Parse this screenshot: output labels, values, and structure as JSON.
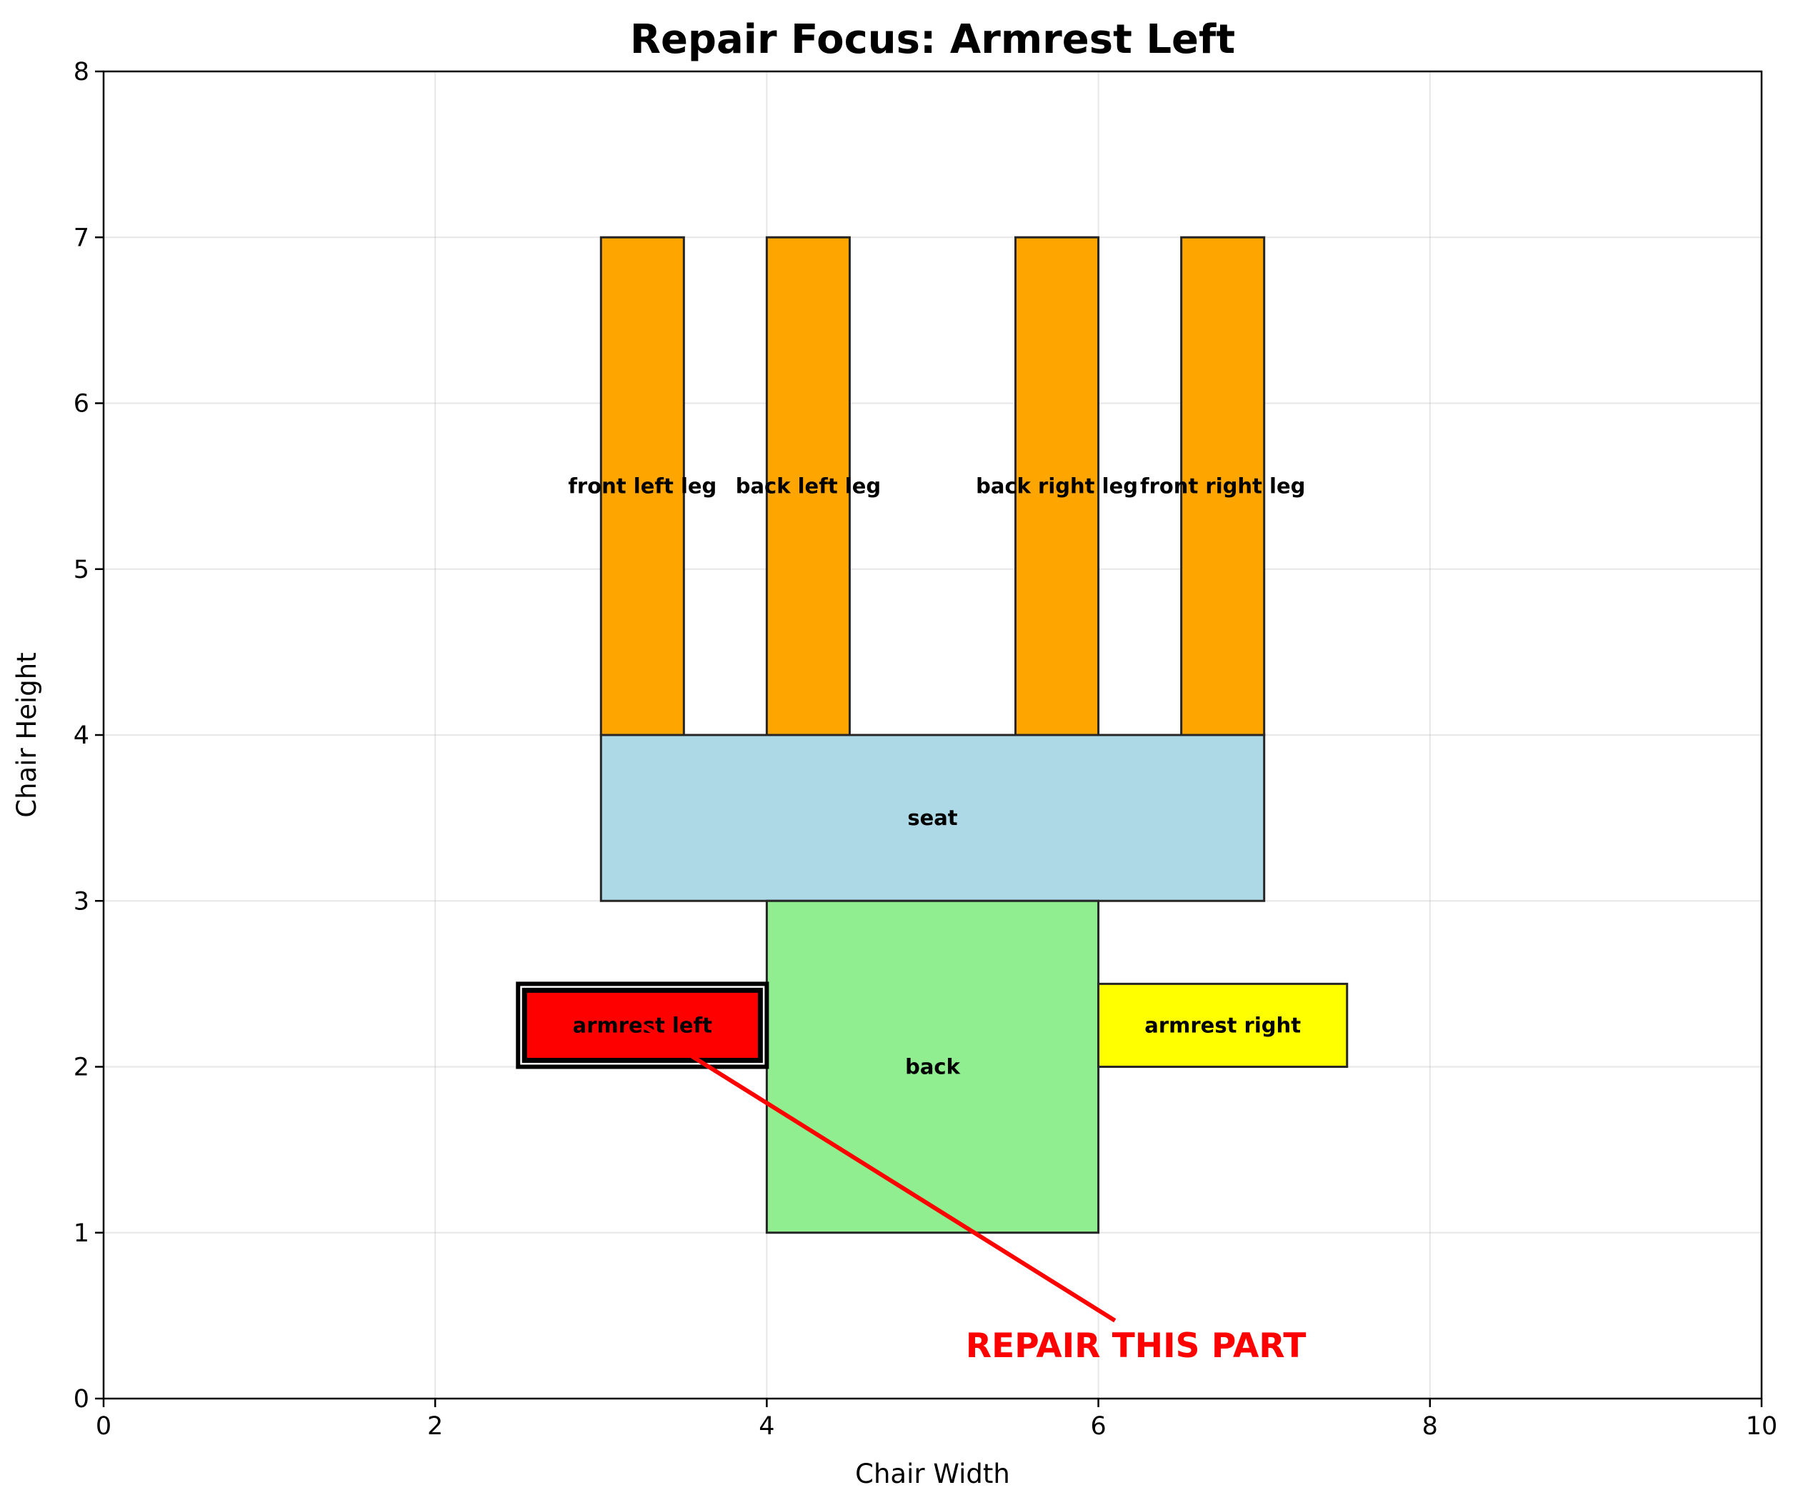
{
  "chart_data": {
    "type": "diagram",
    "title": "Repair Focus: Armrest Left",
    "xlabel": "Chair Width",
    "ylabel": "Chair Height",
    "xlim": [
      0,
      10
    ],
    "ylim": [
      0,
      8
    ],
    "x_ticks": [
      "0",
      "2",
      "4",
      "6",
      "8",
      "10"
    ],
    "y_ticks": [
      "0",
      "1",
      "2",
      "3",
      "4",
      "5",
      "6",
      "7",
      "8"
    ],
    "grid": true,
    "parts": [
      {
        "label": "seat",
        "x": 3,
        "y": 3,
        "width": 4,
        "height": 1,
        "color": "#add8e6",
        "highlight": false
      },
      {
        "label": "back",
        "x": 4,
        "y": 1,
        "width": 2,
        "height": 2,
        "color": "#90ee90",
        "highlight": false
      },
      {
        "label": "front left leg",
        "x": 3,
        "y": 4,
        "width": 0.5,
        "height": 3,
        "color": "#ffa500",
        "highlight": false
      },
      {
        "label": "back left leg",
        "x": 4,
        "y": 4,
        "width": 0.5,
        "height": 3,
        "color": "#ffa500",
        "highlight": false
      },
      {
        "label": "back right leg",
        "x": 5.5,
        "y": 4,
        "width": 0.5,
        "height": 3,
        "color": "#ffa500",
        "highlight": false
      },
      {
        "label": "front right leg",
        "x": 6.5,
        "y": 4,
        "width": 0.5,
        "height": 3,
        "color": "#ffa500",
        "highlight": false
      },
      {
        "label": "armrest left",
        "x": 2.5,
        "y": 2,
        "width": 1.5,
        "height": 0.5,
        "color": "#ff0000",
        "highlight": true
      },
      {
        "label": "armrest right",
        "x": 6,
        "y": 2,
        "width": 1.5,
        "height": 0.5,
        "color": "#ffff00",
        "highlight": false
      }
    ],
    "annotation": {
      "text": "REPAIR THIS PART",
      "text_position": [
        5.2,
        0.25
      ],
      "arrow_from": [
        6.1,
        0.47
      ],
      "arrow_to": [
        3.25,
        2.25
      ],
      "color": "#ff0000"
    }
  }
}
